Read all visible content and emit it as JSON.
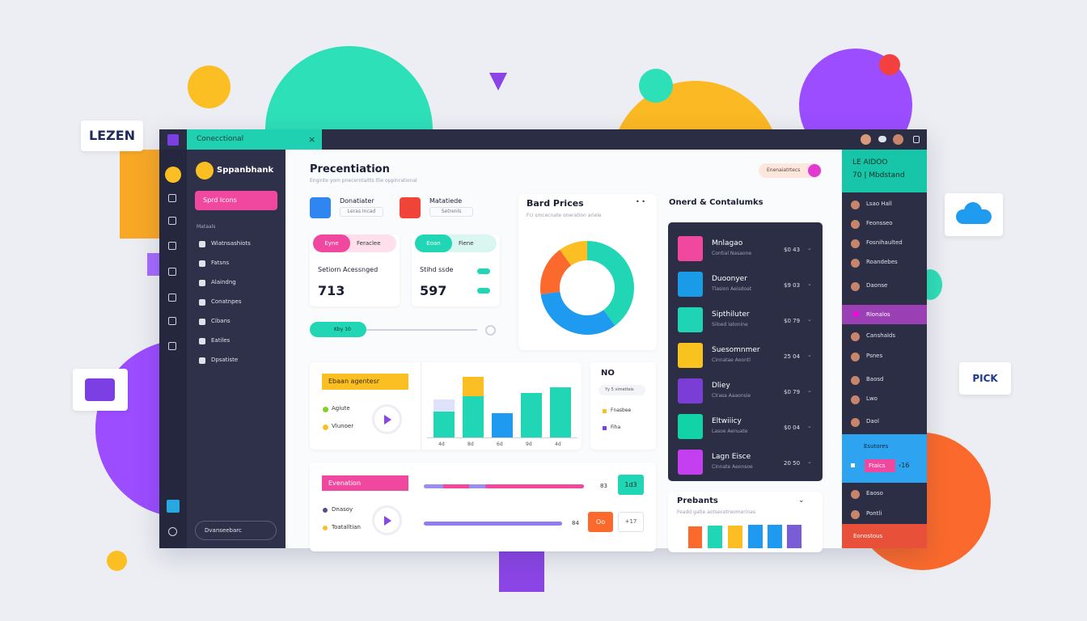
{
  "floating": {
    "left_card": "LEZEN",
    "right_card": "PICK"
  },
  "topbar": {
    "tab": "Conecctional"
  },
  "sidebar": {
    "brand": "Sppanbhank",
    "button": "Sprd Icons",
    "section": "Mataals",
    "items": [
      "Wiatnsashiots",
      "Fatsns",
      "Alaindng",
      "Conatnpes",
      "Cibans",
      "Eatiles",
      "Dpsatiste"
    ],
    "footer": "Dvanseebarc"
  },
  "header": {
    "title": "Precentiation",
    "subtitle": "Enginte yom pnecerntaitts tlie oppinrational",
    "badge": "Enenaiatrtecs"
  },
  "stats": [
    {
      "title": "Donatiater",
      "sub": "Leras Incad"
    },
    {
      "title": "Matatiede",
      "sub": "Setrenls"
    }
  ],
  "cards": [
    {
      "tabs": [
        "Eyne",
        "Feraclee"
      ],
      "label": "Setiorn Acessnged",
      "value": "713"
    },
    {
      "tabs": [
        "Eoan",
        "Fiene"
      ],
      "label": "Stihd ssde",
      "value": "597"
    }
  ],
  "slider": {
    "label": "Kby 10"
  },
  "donut": {
    "title": "Bard Prices",
    "subtitle": "Fci smcecnate oneration ariele"
  },
  "bars": {
    "badge": "Ebaan agentesr",
    "legend": [
      "Agiute",
      "Vlunoer"
    ],
    "labels": [
      "4d",
      "8d",
      "6d",
      "9d",
      "4d"
    ]
  },
  "side_card": {
    "title": "NO",
    "chip": "Yy 5 vimetteis",
    "legend": [
      "Fnasbee",
      "Fiha"
    ]
  },
  "progress": {
    "badge": "Evenation",
    "legend": [
      "Dnasoy",
      "Toatalltian"
    ],
    "values": [
      "83",
      "84"
    ],
    "buttons": [
      "1d3",
      "Oo",
      "+17"
    ]
  },
  "list": {
    "title": "Onerd & Contalumks",
    "items": [
      {
        "name": "Mnlagao",
        "sub": "Contial Nasaone",
        "value": "$0 43"
      },
      {
        "name": "Duoonyer",
        "sub": "Tlasion Aeisdoat",
        "value": "$9 03"
      },
      {
        "name": "Sipthiluter",
        "sub": "Siloed Iatonine",
        "value": "$0 79"
      },
      {
        "name": "Suesomnmer",
        "sub": "Cinnatae Aoontl",
        "value": "25 04"
      },
      {
        "name": "Dliey",
        "sub": "Clrasa Aaaonsie",
        "value": "$0 79"
      },
      {
        "name": "Eltwiiicy",
        "sub": "Lasoe Aenuate",
        "value": "$0 04"
      },
      {
        "name": "Lagn Eisce",
        "sub": "Cinnate Aeonsoe",
        "value": "20 50"
      }
    ]
  },
  "presents": {
    "title": "Prebants",
    "subtitle": "Feadd gatie aotsecetreomerinas"
  },
  "right": {
    "title": "LE AIDOO",
    "subtitle": "70 | Mbdstand",
    "items_top": [
      "Lsao Hall",
      "Feonsseo",
      "Fosnihaulted",
      "Roandebes",
      "Daonse"
    ],
    "highlight": "Rlonalos",
    "items_mid": [
      "Canshalds",
      "Psnes",
      "Baosd",
      "Lwo",
      "Daol"
    ],
    "blue": {
      "title": "Esutores",
      "chip": "Ftaics",
      "value": "‹16"
    },
    "items_bottom": [
      "Eaoso",
      "Pontli"
    ],
    "footer": "Eonostous"
  }
}
